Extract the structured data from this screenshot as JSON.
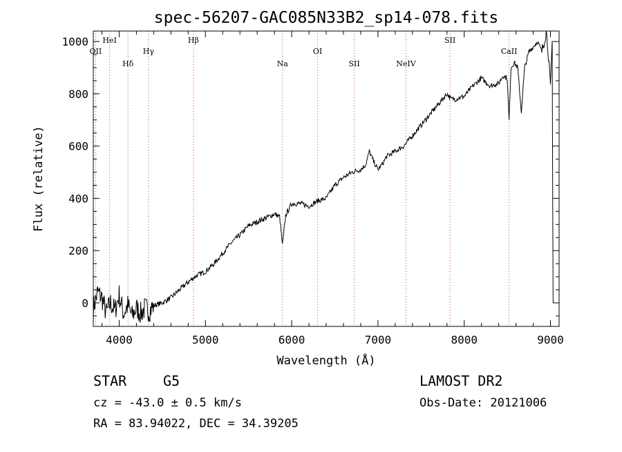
{
  "chart_data": {
    "type": "line",
    "title": "spec-56207-GAC085N33B2_sp14-078.fits",
    "xlabel": "Wavelength (Å)",
    "ylabel": "Flux (relative)",
    "xlim": [
      3700,
      9100
    ],
    "ylim": [
      -90,
      1040
    ],
    "x_ticks": [
      4000,
      5000,
      6000,
      7000,
      8000,
      9000
    ],
    "y_ticks": [
      0,
      200,
      400,
      600,
      800,
      1000
    ],
    "grid": false,
    "spectral_lines": [
      {
        "name": "OII",
        "wavelength": 3727,
        "row": 2
      },
      {
        "name": "HeI",
        "wavelength": 3889,
        "row": 1
      },
      {
        "name": "Hδ",
        "wavelength": 4102,
        "row": 3
      },
      {
        "name": "Hγ",
        "wavelength": 4340,
        "row": 2
      },
      {
        "name": "Hβ",
        "wavelength": 4861,
        "row": 1
      },
      {
        "name": "Na",
        "wavelength": 5893,
        "row": 3
      },
      {
        "name": "OI",
        "wavelength": 6300,
        "row": 2
      },
      {
        "name": "SII",
        "wavelength": 6725,
        "row": 3
      },
      {
        "name": "NeIV",
        "wavelength": 7325,
        "row": 3
      },
      {
        "name": "SII",
        "wavelength": 7835,
        "row": 1
      },
      {
        "name": "CaII",
        "wavelength": 8520,
        "row": 2
      }
    ],
    "series": [
      {
        "x": [
          3700,
          3750,
          3800,
          3850,
          3900,
          3950,
          4000,
          4050,
          4100,
          4150,
          4200,
          4250,
          4300,
          4350,
          4400,
          4500,
          4600,
          4700,
          4800,
          4900,
          5000,
          5100,
          5200,
          5300,
          5400,
          5500,
          5600,
          5700,
          5800,
          5860,
          5893,
          5930,
          6000,
          6100,
          6200,
          6300,
          6400,
          6500,
          6600,
          6700,
          6800,
          6860,
          6900,
          6950,
          7000,
          7050,
          7100,
          7200,
          7300,
          7400,
          7500,
          7600,
          7700,
          7800,
          7850,
          7900,
          8000,
          8100,
          8200,
          8300,
          8400,
          8450,
          8498,
          8520,
          8542,
          8580,
          8620,
          8662,
          8700,
          8750,
          8800,
          8850,
          8900,
          8950,
          8970,
          9000,
          9020,
          9030
        ],
        "y": [
          -20,
          40,
          20,
          -40,
          0,
          -30,
          30,
          -40,
          -10,
          -50,
          -20,
          -40,
          -20,
          -30,
          -10,
          0,
          20,
          50,
          80,
          105,
          120,
          150,
          190,
          230,
          260,
          295,
          310,
          325,
          340,
          330,
          220,
          335,
          380,
          380,
          370,
          390,
          400,
          450,
          480,
          500,
          510,
          530,
          580,
          540,
          510,
          530,
          560,
          580,
          600,
          640,
          680,
          720,
          760,
          800,
          780,
          780,
          790,
          830,
          860,
          830,
          840,
          870,
          860,
          700,
          900,
          920,
          900,
          730,
          900,
          960,
          980,
          1000,
          960,
          1040,
          980,
          820,
          1000,
          0
        ]
      }
    ]
  },
  "info": {
    "object_class": "STAR",
    "subclass": "G5",
    "survey": "LAMOST DR2",
    "redshift": "cz = -43.0 ± 0.5 km/s",
    "obs_date": "Obs-Date: 20121006",
    "coordinates": "RA =  83.94022, DEC =  34.39205"
  }
}
